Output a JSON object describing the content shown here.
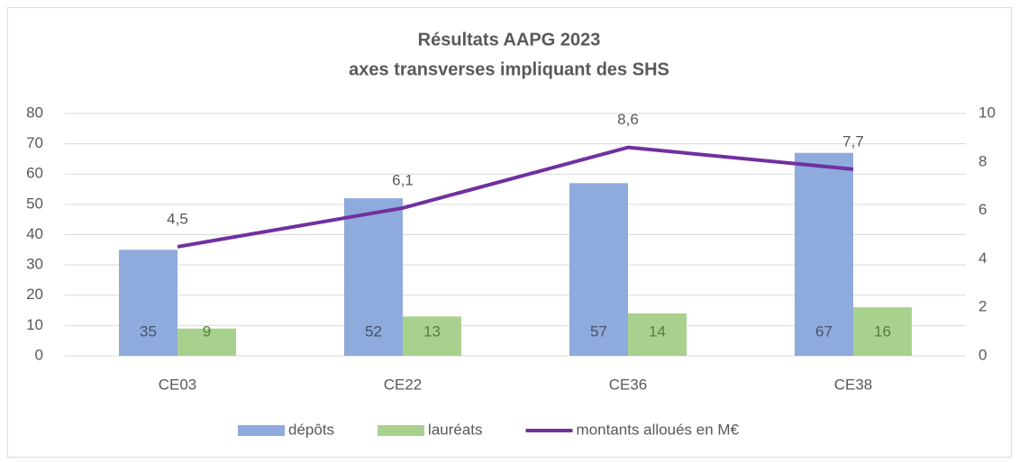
{
  "chart_data": {
    "type": "bar_line",
    "title": "Résultats AAPG 2023",
    "subtitle": "axes transverses impliquant des SHS",
    "categories": [
      "CE03",
      "CE22",
      "CE36",
      "CE38"
    ],
    "series": [
      {
        "name": "dépôts",
        "type": "bar",
        "color": "#8faadc",
        "label_color": "#44546a",
        "values": [
          35,
          52,
          57,
          67
        ]
      },
      {
        "name": "lauréats",
        "type": "bar",
        "color": "#a9d18e",
        "label_color": "#548235",
        "values": [
          9,
          13,
          14,
          16
        ]
      },
      {
        "name": "montants alloués en M€",
        "type": "line",
        "axis": "y2",
        "color": "#7030a0",
        "values": [
          4.5,
          6.1,
          8.6,
          7.7
        ],
        "value_labels": [
          "4,5",
          "6,1",
          "8,6",
          "7,7"
        ]
      }
    ],
    "ylim": [
      0,
      80
    ],
    "yticks": [
      0,
      10,
      20,
      30,
      40,
      50,
      60,
      70,
      80
    ],
    "y2lim": [
      0,
      10
    ],
    "y2ticks": [
      0,
      2,
      4,
      6,
      8,
      10
    ],
    "legend": "bottom"
  }
}
